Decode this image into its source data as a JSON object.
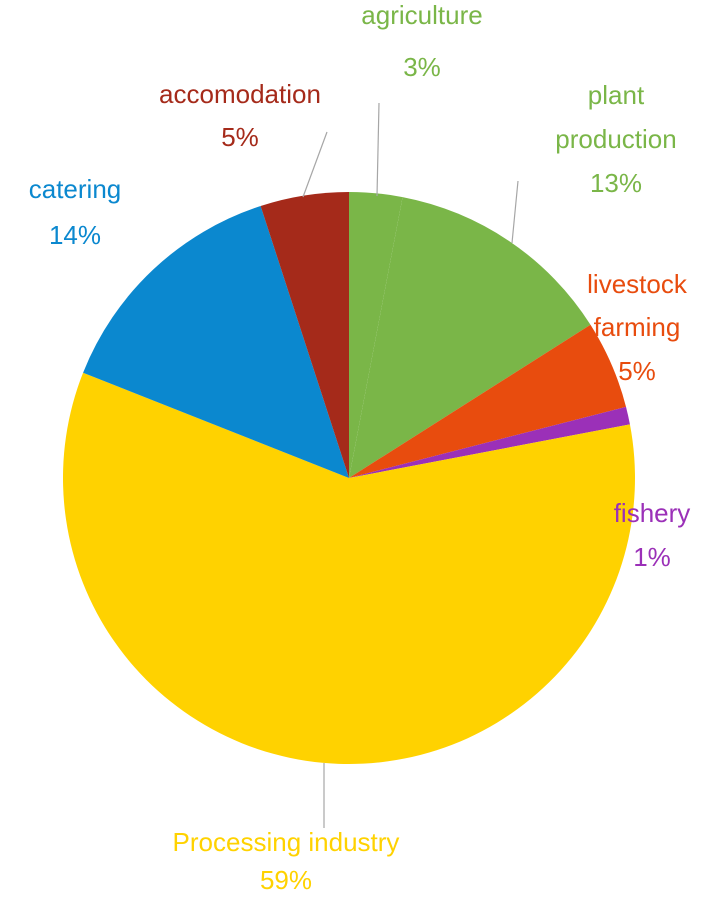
{
  "chart_data": {
    "type": "pie",
    "title": "",
    "start_angle_deg": 0,
    "direction": "clockwise",
    "slices": [
      {
        "label_lines": [
          "agriculture"
        ],
        "value": 3,
        "percent_label": "3%",
        "color": "#7AB648"
      },
      {
        "label_lines": [
          "plant",
          "production"
        ],
        "value": 13,
        "percent_label": "13%",
        "color": "#7AB648"
      },
      {
        "label_lines": [
          "livestock",
          "farming"
        ],
        "value": 5,
        "percent_label": "5%",
        "color": "#E84C0E"
      },
      {
        "label_lines": [
          "fishery"
        ],
        "value": 1,
        "percent_label": "1%",
        "color": "#9B30B8"
      },
      {
        "label_lines": [
          "Processing industry"
        ],
        "value": 59,
        "percent_label": "59%",
        "color": "#FFD200"
      },
      {
        "label_lines": [
          "catering"
        ],
        "value": 14,
        "percent_label": "14%",
        "color": "#0B88CF"
      },
      {
        "label_lines": [
          "accomodation"
        ],
        "value": 5,
        "percent_label": "5%",
        "color": "#A52A1A"
      }
    ],
    "label_colors": [
      "#7AB648",
      "#7AB648",
      "#E84C0E",
      "#9B30B8",
      "#FFD200",
      "#0B88CF",
      "#A52A1A"
    ],
    "leader_line_color": "#A6A6A6",
    "legend": "none"
  }
}
